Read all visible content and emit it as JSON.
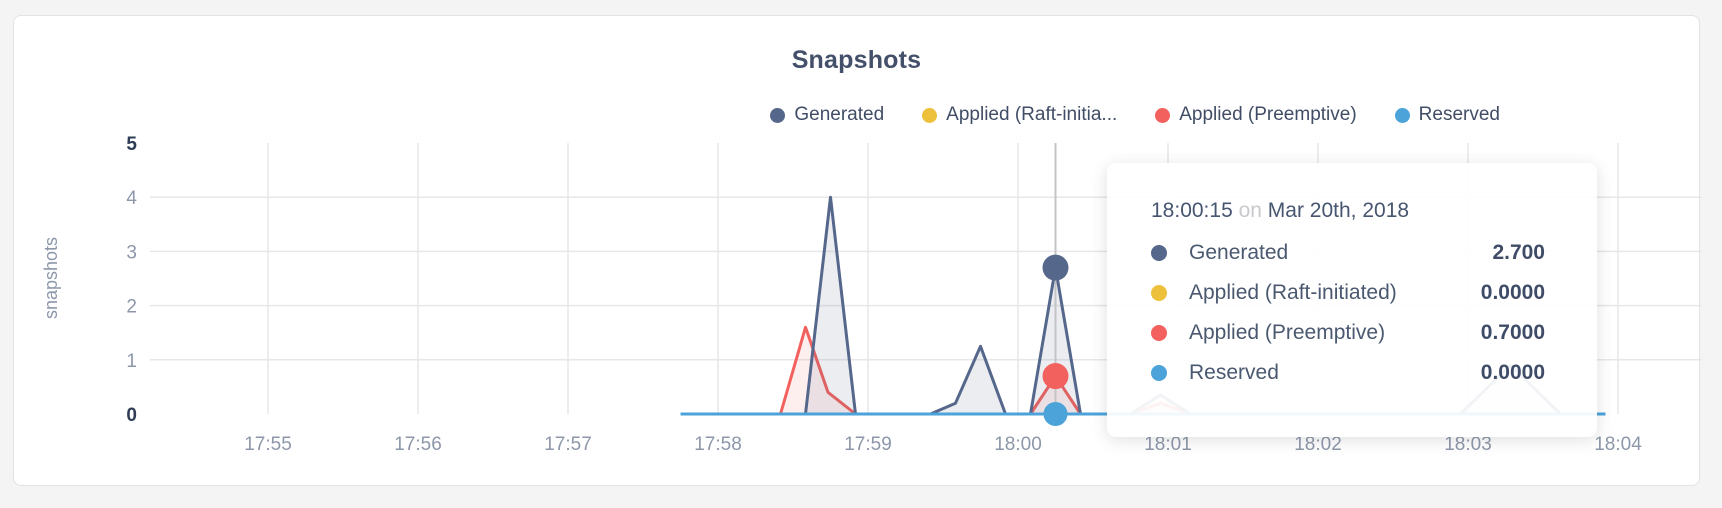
{
  "page": {
    "background_color": "#f4f4f5",
    "card_border_color": "#e2e2e2"
  },
  "chart": {
    "title": "Snapshots",
    "accent_text_color": "#44506a"
  },
  "chart_data": {
    "type": "area",
    "title": "Snapshots",
    "xlabel": "",
    "ylabel": "snapshots",
    "ylim": [
      0,
      5
    ],
    "yticks": [
      0,
      1,
      2,
      3,
      4,
      5
    ],
    "yticks_bold": [
      0,
      5
    ],
    "xticks": [
      "17:55",
      "17:56",
      "17:57",
      "17:58",
      "17:59",
      "18:00",
      "18:01",
      "18:02",
      "18:03",
      "18:04"
    ],
    "x_unit": "seconds since 17:55:00",
    "grid": true,
    "legend_position": "top-right",
    "legend_labels": [
      "Generated",
      "Applied (Raft-initia...",
      "Applied (Preemptive)",
      "Reserved"
    ],
    "series": [
      {
        "name": "Generated",
        "color": "#56678c",
        "fill": "rgba(91,108,143,0.12)",
        "points": [
          [
            165,
            0
          ],
          [
            205,
            0
          ],
          [
            215,
            0
          ],
          [
            225,
            4
          ],
          [
            235,
            0
          ],
          [
            265,
            0
          ],
          [
            275,
            0.2
          ],
          [
            285,
            1.25
          ],
          [
            295,
            0
          ],
          [
            305,
            0
          ],
          [
            315,
            2.7
          ],
          [
            325,
            0
          ],
          [
            345,
            0
          ],
          [
            357,
            0.35
          ],
          [
            369,
            0
          ],
          [
            477,
            0
          ],
          [
            497,
            0.9
          ],
          [
            517,
            0
          ],
          [
            535,
            0
          ]
        ]
      },
      {
        "name": "Applied (Raft-initiated)",
        "color": "#eec13d",
        "fill": "none",
        "points": [
          [
            165,
            0
          ],
          [
            535,
            0
          ]
        ]
      },
      {
        "name": "Applied (Preemptive)",
        "color": "#f2615e",
        "fill": "rgba(242,97,94,0.10)",
        "points": [
          [
            165,
            0
          ],
          [
            205,
            0
          ],
          [
            215,
            1.6
          ],
          [
            224,
            0.4
          ],
          [
            235,
            0
          ],
          [
            305,
            0
          ],
          [
            315,
            0.7
          ],
          [
            325,
            0
          ],
          [
            345,
            0
          ],
          [
            357,
            0.2
          ],
          [
            369,
            0
          ],
          [
            535,
            0
          ]
        ]
      },
      {
        "name": "Reserved",
        "color": "#4ba3da",
        "fill": "none",
        "points": [
          [
            165,
            0
          ],
          [
            535,
            0
          ]
        ]
      }
    ],
    "hover": {
      "t": 315,
      "time_label": "18:00:15",
      "points": [
        {
          "series": "Generated",
          "value": 2.7
        },
        {
          "series": "Applied (Preemptive)",
          "value": 0.7
        },
        {
          "series": "Reserved",
          "value": 0
        }
      ]
    }
  },
  "tooltip": {
    "time": "18:00:15",
    "preposition": "on",
    "date": "Mar 20th, 2018",
    "rows": [
      {
        "label": "Generated",
        "value": "2.700",
        "color": "#56678c"
      },
      {
        "label": "Applied (Raft-initiated)",
        "value": "0.0000",
        "color": "#eec13d"
      },
      {
        "label": "Applied (Preemptive)",
        "value": "0.7000",
        "color": "#f2615e"
      },
      {
        "label": "Reserved",
        "value": "0.0000",
        "color": "#4ba3da"
      }
    ]
  }
}
